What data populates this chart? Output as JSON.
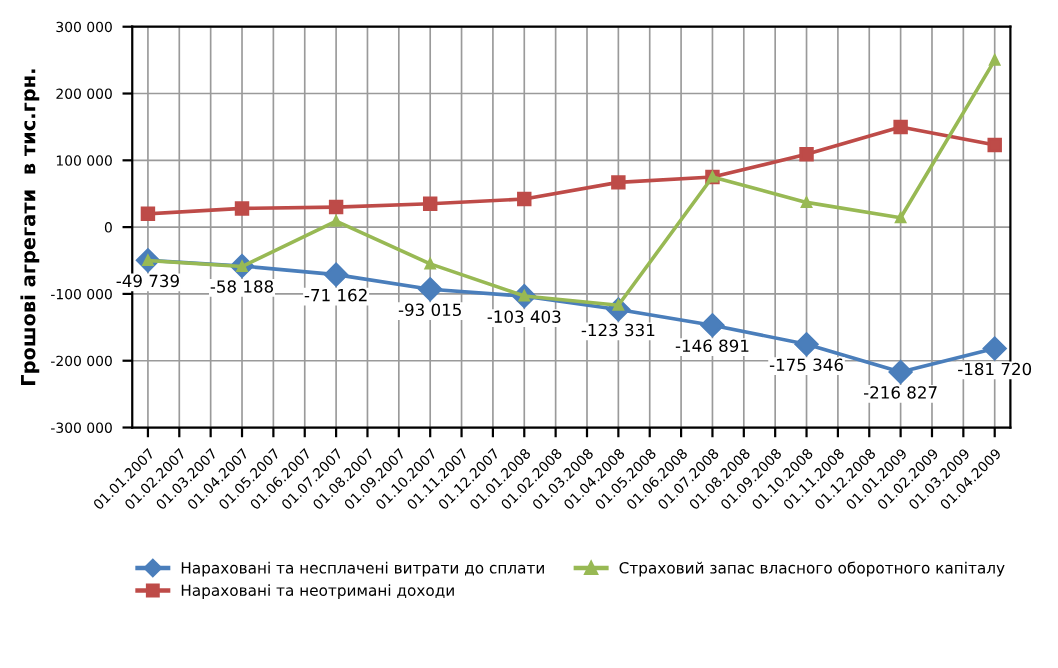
{
  "chart_data": {
    "type": "line",
    "ylabel": "Грошові агрегати  в тис.грн.",
    "categories": [
      "01.01.2007",
      "01.02.2007",
      "01.03.2007",
      "01.04.2007",
      "01.05.2007",
      "01.06.2007",
      "01.07.2007",
      "01.08.2007",
      "01.09.2007",
      "01.10.2007",
      "01.11.2007",
      "01.12.2007",
      "01.01.2008",
      "01.02.2008",
      "01.03.2008",
      "01.04.2008",
      "01.05.2008",
      "01.06.2008",
      "01.07.2008",
      "01.08.2008",
      "01.09.2008",
      "01.10.2008",
      "01.11.2008",
      "01.12.2008",
      "01.01.2009",
      "01.02.2009",
      "01.03.2009",
      "01.04.2009"
    ],
    "series": [
      {
        "name": "Нараховані та несплачені витрати до сплати",
        "color": "#4a7ebb",
        "marker": "diamond",
        "values": [
          -49739,
          null,
          null,
          -58188,
          null,
          null,
          -71162,
          null,
          null,
          -93015,
          null,
          null,
          -103403,
          null,
          null,
          -123331,
          null,
          null,
          -146891,
          null,
          null,
          -175346,
          null,
          null,
          -216827,
          null,
          null,
          -181720
        ],
        "value_labels": [
          "-49 739",
          null,
          null,
          "-58 188",
          null,
          null,
          "-71 162",
          null,
          null,
          "-93 015",
          null,
          null,
          "-103 403",
          null,
          null,
          "-123 331",
          null,
          null,
          "-146 891",
          null,
          null,
          "-175 346",
          null,
          null,
          "-216 827",
          null,
          null,
          "-181 720"
        ]
      },
      {
        "name": "Нараховані та неотримані доходи",
        "color": "#be4b48",
        "marker": "square",
        "values": [
          20000,
          null,
          null,
          28000,
          null,
          null,
          30000,
          null,
          null,
          35000,
          null,
          null,
          42000,
          null,
          null,
          67000,
          null,
          null,
          75000,
          null,
          null,
          109000,
          null,
          null,
          150000,
          null,
          null,
          123000
        ]
      },
      {
        "name": "Страховий запас власного оборотного капіталу",
        "color": "#98b954",
        "marker": "triangle",
        "values": [
          -50000,
          null,
          null,
          -59000,
          null,
          null,
          9000,
          null,
          null,
          -55000,
          null,
          null,
          -103000,
          null,
          null,
          -117000,
          null,
          null,
          75000,
          null,
          null,
          37000,
          null,
          null,
          14000,
          null,
          null,
          250000
        ]
      }
    ],
    "ylim": [
      -300000,
      300000
    ],
    "yticks": [
      {
        "value": -300000,
        "label": "-300 000"
      },
      {
        "value": -200000,
        "label": "-200 000"
      },
      {
        "value": -100000,
        "label": "-100 000"
      },
      {
        "value": 0,
        "label": "0"
      },
      {
        "value": 100000,
        "label": "100 000"
      },
      {
        "value": 200000,
        "label": "200 000"
      },
      {
        "value": 300000,
        "label": "300 000"
      }
    ],
    "grid": true,
    "legend": "bottom"
  }
}
